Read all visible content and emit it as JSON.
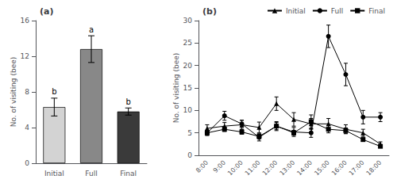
{
  "chart_data": [
    {
      "type": "bar",
      "title": "(a)",
      "categories": [
        "Initial",
        "Full",
        "Final"
      ],
      "values": [
        6.3,
        12.8,
        5.8
      ],
      "errors": [
        1.0,
        1.5,
        0.4
      ],
      "colors": [
        "#d3d3d3",
        "#888888",
        "#3a3a3a"
      ],
      "annotations": [
        "b",
        "a",
        "b"
      ],
      "ylabel": "No. of visiting (bee)",
      "ylim": [
        0,
        16
      ],
      "yticks": [
        0,
        4,
        8,
        12,
        16
      ],
      "grid": false
    },
    {
      "type": "line",
      "title": "(b)",
      "categories": [
        "8:00",
        "9:00",
        "10:00",
        "11:00",
        "12:00",
        "13:00",
        "14:00",
        "15:00",
        "16:00",
        "17:00",
        "18:00"
      ],
      "series": [
        {
          "name": "Initial",
          "color": "#000000",
          "marker": "triangle",
          "values": [
            6.0,
            6.5,
            6.8,
            6.2,
            11.5,
            8.0,
            7.0,
            7.0,
            5.8,
            5.0,
            2.5
          ],
          "errors": [
            0.8,
            0.8,
            1.0,
            1.2,
            1.5,
            1.5,
            1.2,
            1.2,
            1.0,
            0.8,
            0.5
          ]
        },
        {
          "name": "Full",
          "color": "#000000",
          "marker": "circle",
          "values": [
            5.0,
            8.8,
            7.0,
            4.0,
            6.5,
            5.2,
            5.0,
            26.5,
            18.0,
            8.5,
            8.5
          ],
          "errors": [
            0.6,
            1.0,
            0.8,
            0.8,
            1.0,
            1.0,
            1.0,
            2.5,
            2.5,
            1.5,
            1.0
          ]
        },
        {
          "name": "Final",
          "color": "#000000",
          "marker": "square",
          "values": [
            5.0,
            5.8,
            5.2,
            4.2,
            6.5,
            5.0,
            7.5,
            5.8,
            5.5,
            3.5,
            2.0
          ],
          "errors": [
            0.5,
            0.5,
            0.5,
            0.5,
            0.8,
            0.5,
            1.5,
            0.8,
            0.6,
            0.4,
            0.3
          ]
        }
      ],
      "ylabel": "No. of visiting (bee)",
      "ylim": [
        0,
        30
      ],
      "yticks": [
        0,
        5,
        10,
        15,
        20,
        25,
        30
      ],
      "legend": "upper right",
      "grid": false
    }
  ]
}
